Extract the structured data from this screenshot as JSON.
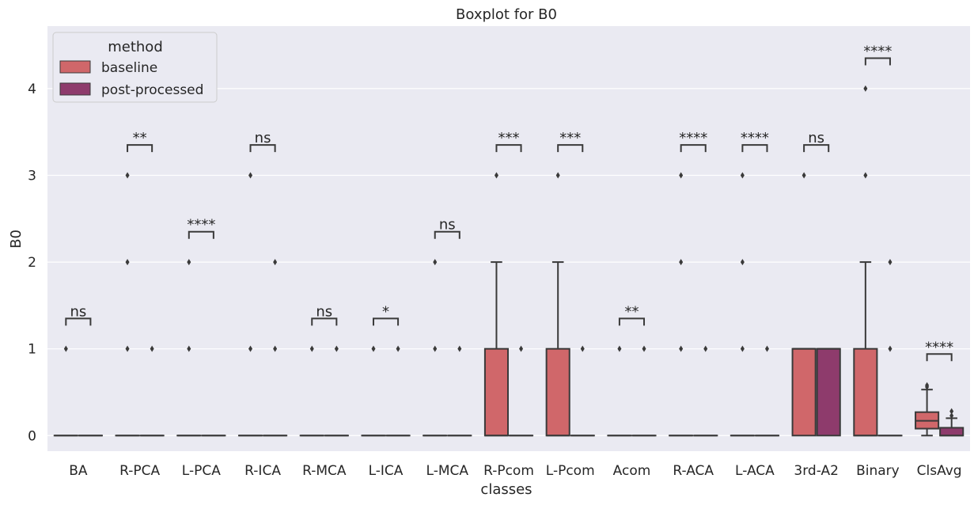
{
  "chart_data": {
    "type": "boxplot",
    "title": "Boxplot for B0",
    "xlabel": "classes",
    "ylabel": "B0",
    "ylim": [
      -0.18,
      4.72
    ],
    "yticks": [
      0,
      1,
      2,
      3,
      4
    ],
    "grid": true,
    "legend": {
      "title": "method",
      "position": "top-left",
      "entries": [
        "baseline",
        "post-processed"
      ]
    },
    "colors": {
      "background": "#eaeaf2",
      "grid": "#ffffff",
      "baseline": "#d0676a",
      "post-processed": "#8e3b6c",
      "line": "#3a3a3a"
    },
    "categories": [
      "BA",
      "R-PCA",
      "L-PCA",
      "R-ICA",
      "R-MCA",
      "L-ICA",
      "L-MCA",
      "R-Pcom",
      "L-Pcom",
      "Acom",
      "R-ACA",
      "L-ACA",
      "3rd-A2",
      "Binary",
      "ClsAvg"
    ],
    "series": [
      {
        "name": "baseline",
        "boxes": [
          {
            "q1": 0,
            "median": 0,
            "q3": 0,
            "whislo": 0,
            "whishi": 0,
            "fliers": [
              1
            ]
          },
          {
            "q1": 0,
            "median": 0,
            "q3": 0,
            "whislo": 0,
            "whishi": 0,
            "fliers": [
              1,
              2,
              3
            ]
          },
          {
            "q1": 0,
            "median": 0,
            "q3": 0,
            "whislo": 0,
            "whishi": 0,
            "fliers": [
              1,
              2
            ]
          },
          {
            "q1": 0,
            "median": 0,
            "q3": 0,
            "whislo": 0,
            "whishi": 0,
            "fliers": [
              1,
              3
            ]
          },
          {
            "q1": 0,
            "median": 0,
            "q3": 0,
            "whislo": 0,
            "whishi": 0,
            "fliers": [
              1
            ]
          },
          {
            "q1": 0,
            "median": 0,
            "q3": 0,
            "whislo": 0,
            "whishi": 0,
            "fliers": [
              1
            ]
          },
          {
            "q1": 0,
            "median": 0,
            "q3": 0,
            "whislo": 0,
            "whishi": 0,
            "fliers": [
              1,
              2
            ]
          },
          {
            "q1": 0,
            "median": 0,
            "q3": 1,
            "whislo": 0,
            "whishi": 2,
            "fliers": [
              3
            ]
          },
          {
            "q1": 0,
            "median": 0,
            "q3": 1,
            "whislo": 0,
            "whishi": 2,
            "fliers": [
              3
            ]
          },
          {
            "q1": 0,
            "median": 0,
            "q3": 0,
            "whislo": 0,
            "whishi": 0,
            "fliers": [
              1
            ]
          },
          {
            "q1": 0,
            "median": 0,
            "q3": 0,
            "whislo": 0,
            "whishi": 0,
            "fliers": [
              1,
              2,
              3
            ]
          },
          {
            "q1": 0,
            "median": 0,
            "q3": 0,
            "whislo": 0,
            "whishi": 0,
            "fliers": [
              1,
              2,
              3
            ]
          },
          {
            "q1": 0,
            "median": 1,
            "q3": 1,
            "whislo": 0,
            "whishi": 1,
            "fliers": [
              3
            ]
          },
          {
            "q1": 0,
            "median": 0,
            "q3": 1,
            "whislo": 0,
            "whishi": 2,
            "fliers": [
              3,
              4
            ]
          },
          {
            "q1": 0.08,
            "median": 0.17,
            "q3": 0.27,
            "whislo": 0,
            "whishi": 0.53,
            "fliers": [
              0.56,
              0.58
            ]
          }
        ]
      },
      {
        "name": "post-processed",
        "boxes": [
          {
            "q1": 0,
            "median": 0,
            "q3": 0,
            "whislo": 0,
            "whishi": 0,
            "fliers": []
          },
          {
            "q1": 0,
            "median": 0,
            "q3": 0,
            "whislo": 0,
            "whishi": 0,
            "fliers": [
              1
            ]
          },
          {
            "q1": 0,
            "median": 0,
            "q3": 0,
            "whislo": 0,
            "whishi": 0,
            "fliers": []
          },
          {
            "q1": 0,
            "median": 0,
            "q3": 0,
            "whislo": 0,
            "whishi": 0,
            "fliers": [
              1,
              2
            ]
          },
          {
            "q1": 0,
            "median": 0,
            "q3": 0,
            "whislo": 0,
            "whishi": 0,
            "fliers": [
              1
            ]
          },
          {
            "q1": 0,
            "median": 0,
            "q3": 0,
            "whislo": 0,
            "whishi": 0,
            "fliers": [
              1
            ]
          },
          {
            "q1": 0,
            "median": 0,
            "q3": 0,
            "whislo": 0,
            "whishi": 0,
            "fliers": [
              1
            ]
          },
          {
            "q1": 0,
            "median": 0,
            "q3": 0,
            "whislo": 0,
            "whishi": 0,
            "fliers": [
              1
            ]
          },
          {
            "q1": 0,
            "median": 0,
            "q3": 0,
            "whislo": 0,
            "whishi": 0,
            "fliers": [
              1
            ]
          },
          {
            "q1": 0,
            "median": 0,
            "q3": 0,
            "whislo": 0,
            "whishi": 0,
            "fliers": [
              1
            ]
          },
          {
            "q1": 0,
            "median": 0,
            "q3": 0,
            "whislo": 0,
            "whishi": 0,
            "fliers": [
              1
            ]
          },
          {
            "q1": 0,
            "median": 0,
            "q3": 0,
            "whislo": 0,
            "whishi": 0,
            "fliers": [
              1
            ]
          },
          {
            "q1": 0,
            "median": 1,
            "q3": 1,
            "whislo": 0,
            "whishi": 1,
            "fliers": []
          },
          {
            "q1": 0,
            "median": 0,
            "q3": 0,
            "whislo": 0,
            "whishi": 0,
            "fliers": [
              1,
              2
            ]
          },
          {
            "q1": 0,
            "median": 0,
            "q3": 0.09,
            "whislo": 0,
            "whishi": 0.2,
            "fliers": [
              0.23,
              0.28
            ]
          }
        ]
      }
    ],
    "annotations": [
      {
        "category": "BA",
        "text": "ns",
        "level": 1.35
      },
      {
        "category": "R-PCA",
        "text": "**",
        "level": 3.35
      },
      {
        "category": "L-PCA",
        "text": "****",
        "level": 2.35
      },
      {
        "category": "R-ICA",
        "text": "ns",
        "level": 3.35
      },
      {
        "category": "R-MCA",
        "text": "ns",
        "level": 1.35
      },
      {
        "category": "L-ICA",
        "text": "*",
        "level": 1.35
      },
      {
        "category": "L-MCA",
        "text": "ns",
        "level": 2.35
      },
      {
        "category": "R-Pcom",
        "text": "***",
        "level": 3.35
      },
      {
        "category": "L-Pcom",
        "text": "***",
        "level": 3.35
      },
      {
        "category": "Acom",
        "text": "**",
        "level": 1.35
      },
      {
        "category": "R-ACA",
        "text": "****",
        "level": 3.35
      },
      {
        "category": "L-ACA",
        "text": "****",
        "level": 3.35
      },
      {
        "category": "3rd-A2",
        "text": "ns",
        "level": 3.35
      },
      {
        "category": "Binary",
        "text": "****",
        "level": 4.35
      },
      {
        "category": "ClsAvg",
        "text": "****",
        "level": 0.94
      }
    ]
  }
}
